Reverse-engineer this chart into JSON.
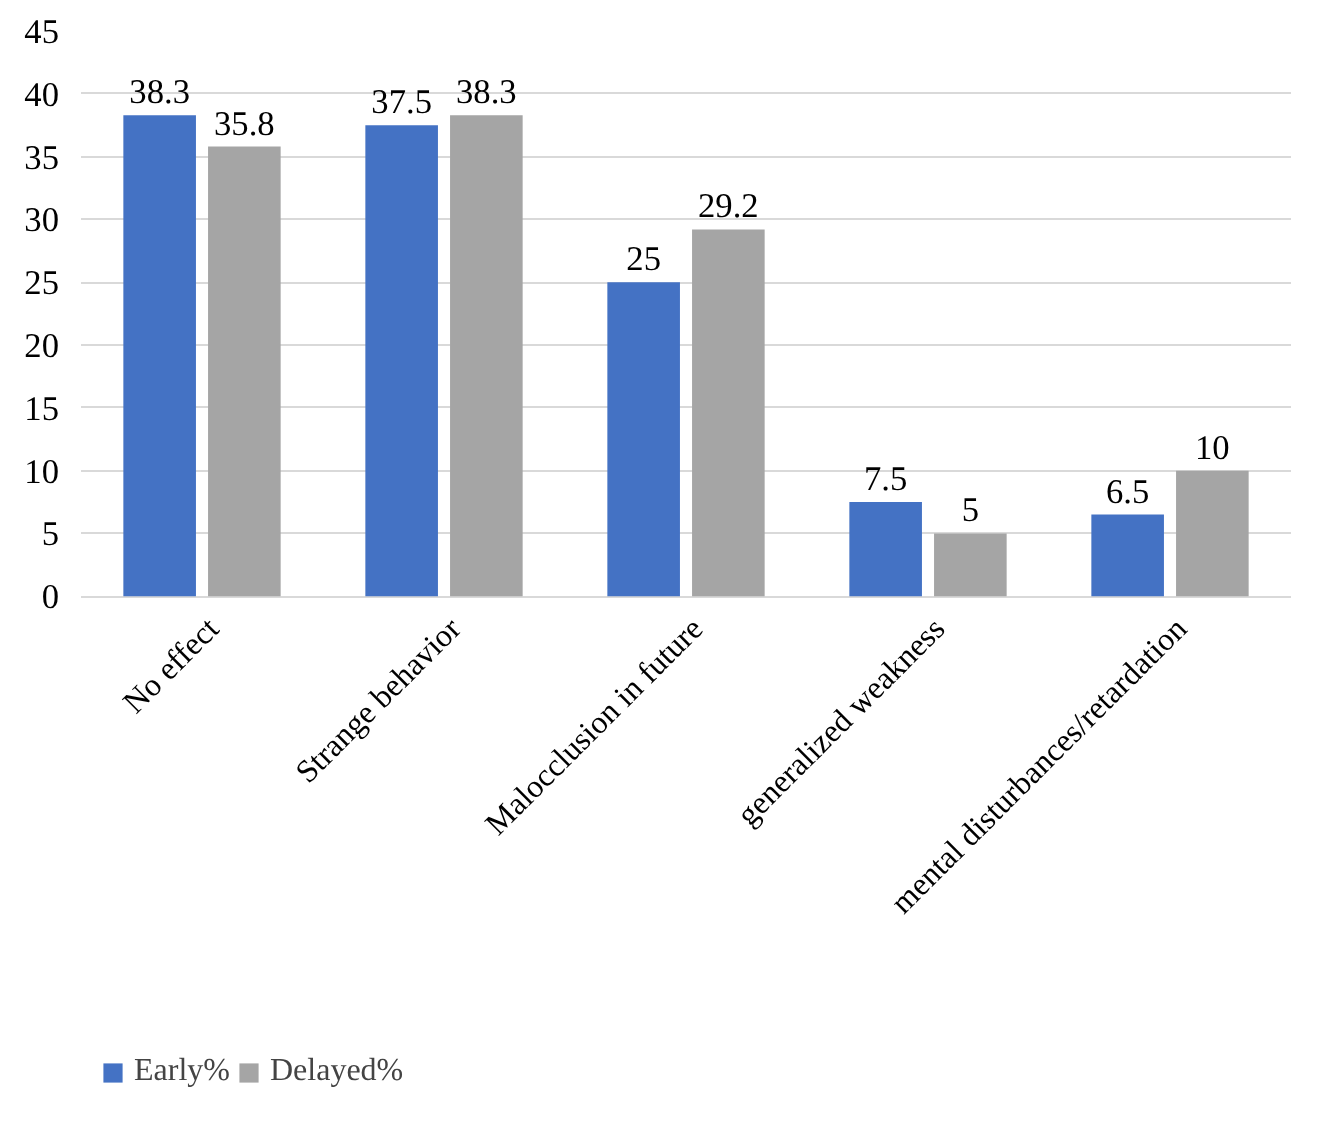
{
  "chart_data": {
    "type": "bar",
    "categories": [
      "No effect",
      "Strange behavior",
      "Malocclusion in future",
      "generalized weakness",
      "mental disturbances/retardation"
    ],
    "series": [
      {
        "name": "Early%",
        "color": "#4472c4",
        "values": [
          38.3,
          37.5,
          25,
          7.5,
          6.5
        ]
      },
      {
        "name": "Delayed%",
        "color": "#a5a5a5",
        "values": [
          35.8,
          38.3,
          29.2,
          5,
          10
        ]
      }
    ],
    "ylim": [
      0,
      45
    ],
    "yticks": [
      0,
      5,
      10,
      15,
      20,
      25,
      30,
      35,
      40,
      45
    ],
    "grid": "y",
    "legend": "bottom",
    "data_labels": true
  }
}
